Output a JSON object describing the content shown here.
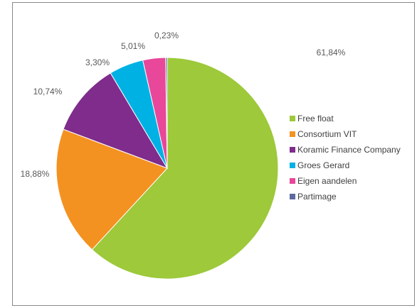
{
  "chart_data": {
    "type": "pie",
    "title": "",
    "legend_position": "right",
    "series": [
      {
        "name": "Free float",
        "label": "61,84%",
        "value": 61.84,
        "color": "#9dc93a"
      },
      {
        "name": "Consortium VIT",
        "label": "18,88%",
        "value": 18.88,
        "color": "#f39221"
      },
      {
        "name": "Koramic Finance Company",
        "label": "10,74%",
        "value": 10.74,
        "color": "#7f2c8c"
      },
      {
        "name": "Groes Gerard",
        "label": "5,01%",
        "value": 5.01,
        "color": "#00b2e3"
      },
      {
        "name": "Eigen aandelen",
        "label": "3,30%",
        "value": 3.3,
        "color": "#e8479a"
      },
      {
        "name": "Partimage",
        "label": "0,23%",
        "value": 0.23,
        "color": "#5c6aa0"
      }
    ]
  }
}
